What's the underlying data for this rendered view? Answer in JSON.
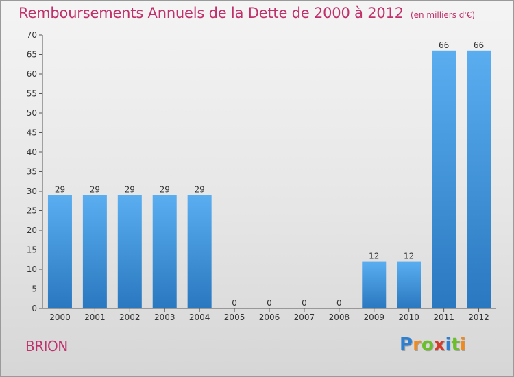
{
  "title": "Remboursements Annuels de la Dette de 2000 à 2012",
  "subtitle": "(en milliers d'€)",
  "place": "BRION",
  "logo": {
    "letters": [
      "P",
      "r",
      "o",
      "x",
      "i",
      "t",
      "i"
    ],
    "colors": [
      "#2f7fd1",
      "#f08a1c",
      "#6abf2a",
      "#d63b2a",
      "#2f7fd1",
      "#6abf2a",
      "#f08a1c"
    ]
  },
  "colors": {
    "title": "#c0306a",
    "bar_top": "#5aaef0",
    "bar_bottom": "#2a78c0"
  },
  "chart_data": {
    "type": "bar",
    "categories": [
      "2000",
      "2001",
      "2002",
      "2003",
      "2004",
      "2005",
      "2006",
      "2007",
      "2008",
      "2009",
      "2010",
      "2011",
      "2012"
    ],
    "values": [
      29,
      29,
      29,
      29,
      29,
      0,
      0,
      0,
      0,
      12,
      12,
      66,
      66
    ],
    "yticks": [
      0,
      5,
      10,
      15,
      20,
      25,
      30,
      35,
      40,
      45,
      50,
      55,
      60,
      65,
      70
    ],
    "ylim": [
      0,
      70
    ],
    "grid": false
  }
}
